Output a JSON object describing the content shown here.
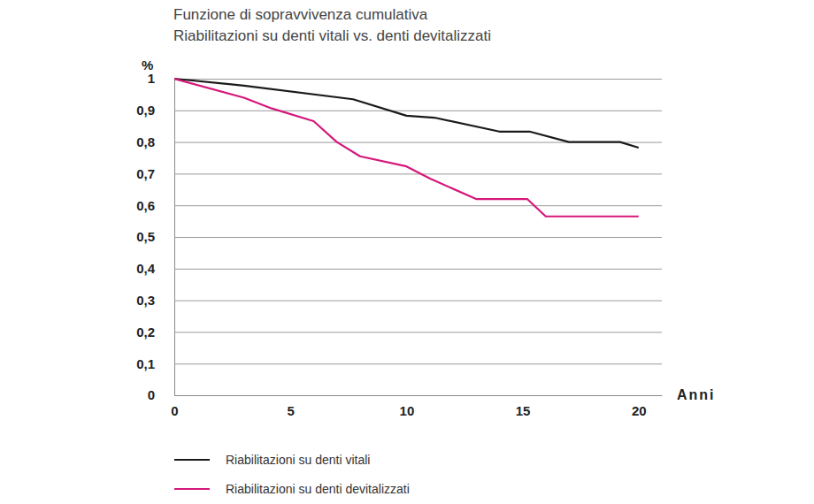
{
  "chart_data": {
    "type": "line",
    "title": "Funzione di sopravvivenza cumulativa",
    "subtitle": "Riabilitazioni su denti vitali vs. denti devitalizzati",
    "x_label": "Anni",
    "y_label": "%",
    "xlim": [
      0,
      21
    ],
    "xticks": [
      0,
      5,
      10,
      15,
      20
    ],
    "ylim": [
      0,
      1
    ],
    "yticks": [
      0,
      {
        "value": 0.1,
        "label": "0,1"
      },
      {
        "value": 0.2,
        "label": "0,2"
      },
      {
        "value": 0.3,
        "label": "0,3"
      },
      {
        "value": 0.4,
        "label": "0,4"
      },
      {
        "value": 0.5,
        "label": "0,5"
      },
      {
        "value": 0.6,
        "label": "0,6"
      },
      {
        "value": 0.7,
        "label": "0,7"
      },
      {
        "value": 0.8,
        "label": "0,8"
      },
      {
        "value": 0.9,
        "label": "0,9"
      },
      1
    ],
    "grid": true,
    "legend": "bottom",
    "series": [
      {
        "name": "Riabilitazioni su denti vitali",
        "color": "#1a1a1a",
        "x": [
          0,
          3,
          7.7,
          10,
          11.2,
          14,
          15.3,
          17,
          19.2,
          20
        ],
        "values": [
          1,
          0.978,
          0.935,
          0.883,
          0.877,
          0.833,
          0.833,
          0.8,
          0.8,
          0.782
        ]
      },
      {
        "name": "Riabilitazioni su denti devitalizzati",
        "color": "#d6177a",
        "x": [
          0,
          3,
          4.2,
          6,
          7,
          8,
          10,
          11,
          13,
          15.2,
          16,
          20
        ],
        "values": [
          1,
          0.94,
          0.906,
          0.866,
          0.8,
          0.755,
          0.723,
          0.685,
          0.62,
          0.62,
          0.565,
          0.565
        ]
      }
    ]
  }
}
